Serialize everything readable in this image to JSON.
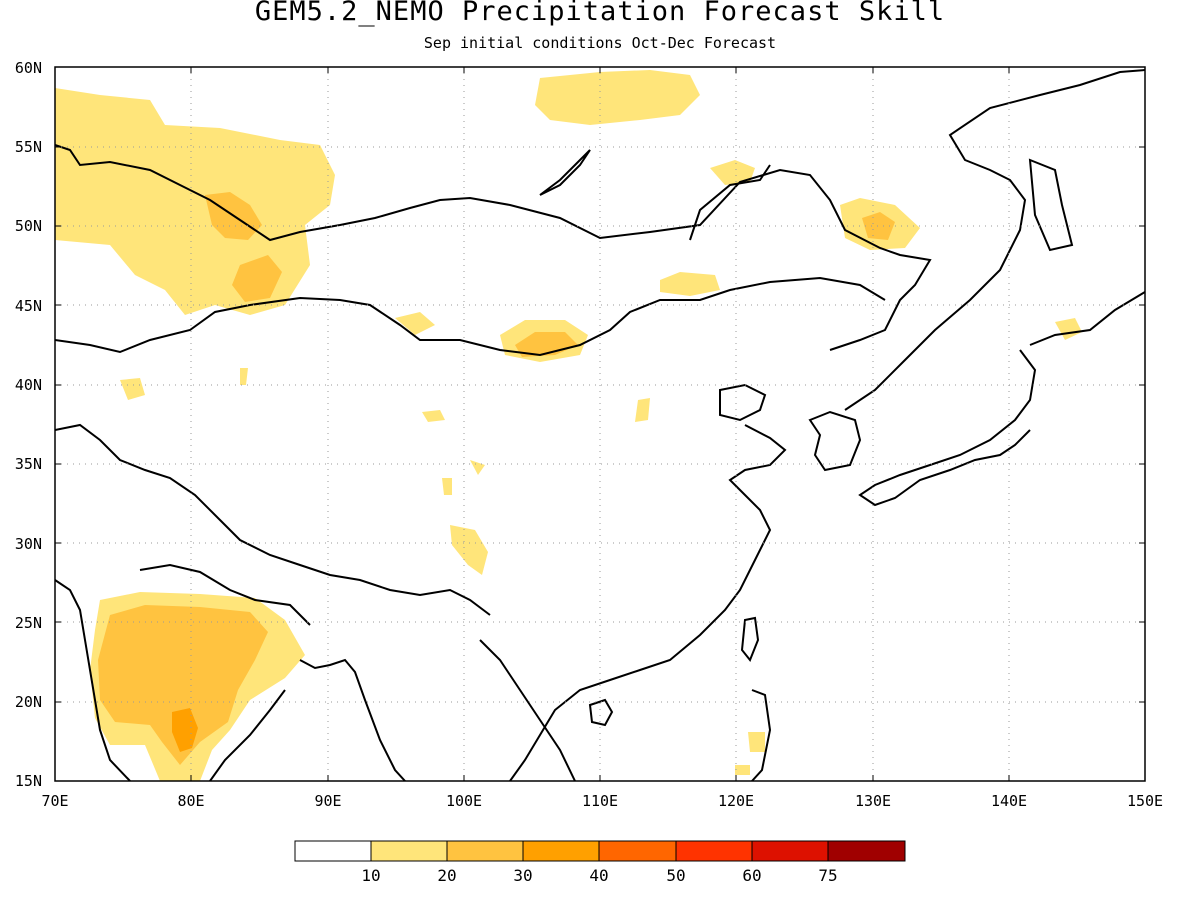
{
  "title": "GEM5.2_NEMO Precipitation Forecast Skill",
  "subtitle": "Sep initial conditions  Oct-Dec Forecast",
  "map": {
    "lon_range": [
      70,
      150
    ],
    "lat_range": [
      15,
      60
    ],
    "lat_ticks": [
      "60N",
      "55N",
      "50N",
      "45N",
      "40N",
      "35N",
      "30N",
      "25N",
      "20N",
      "15N"
    ],
    "lon_ticks": [
      "70E",
      "80E",
      "90E",
      "100E",
      "110E",
      "120E",
      "130E",
      "140E",
      "150E"
    ],
    "gridlines": "dotted"
  },
  "colorbar": {
    "levels": [
      "10",
      "20",
      "30",
      "40",
      "50",
      "60",
      "75"
    ],
    "colors": [
      "#ffffff",
      "#ffe57a",
      "#ffc340",
      "#ffa000",
      "#ff6600",
      "#ff3300",
      "#dd1100",
      "#a00000"
    ]
  }
}
